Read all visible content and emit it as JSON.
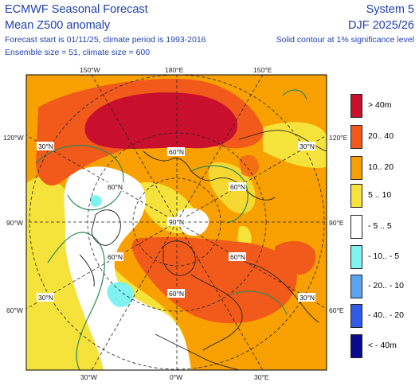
{
  "header": {
    "title": "ECMWF Seasonal Forecast",
    "subtitle": "Mean Z500 anomaly",
    "line3": "Forecast start is 01/11/25, climate period is 1993-2016",
    "line4": "Ensemble size = 51, climate size = 600",
    "system": "System 5",
    "season": "DJF 2025/26",
    "significance": "Solid contour at 1% significance level"
  },
  "map": {
    "lon_labels_top": [
      "150°W",
      "180°E",
      "150°E"
    ],
    "lon_labels_bottom": [
      "30°W",
      "0°W",
      "30°E"
    ],
    "lat_labels_left": [
      "120°W",
      "90°W",
      "60°W"
    ],
    "lat_labels_right": [
      "120°E",
      "90°E",
      "60°E"
    ],
    "grid_labels": [
      "30°N",
      "60°N",
      "60°N",
      "60°N",
      "90°N",
      "30°N",
      "60°N",
      "60°N",
      "30°N",
      "60°N",
      "30°N"
    ],
    "colors": {
      "ocean_border": "#000000",
      "contour_significance": "#2e8b57"
    }
  },
  "legend": [
    {
      "label": "> 40m",
      "color": "#c8102e"
    },
    {
      "label": "20.. 40",
      "color": "#f15a1a"
    },
    {
      "label": "10.. 20",
      "color": "#f7a000"
    },
    {
      "label": "5 .. 10",
      "color": "#f5e23a"
    },
    {
      "label": "- 5 .. 5",
      "color": "#ffffff"
    },
    {
      "label": "- 10.. - 5",
      "color": "#7ff2f2"
    },
    {
      "label": "- 20.. - 10",
      "color": "#5aa5f0"
    },
    {
      "label": "- 40.. - 20",
      "color": "#2e5ce6"
    },
    {
      "label": "< - 40m",
      "color": "#0a0a8c"
    }
  ]
}
